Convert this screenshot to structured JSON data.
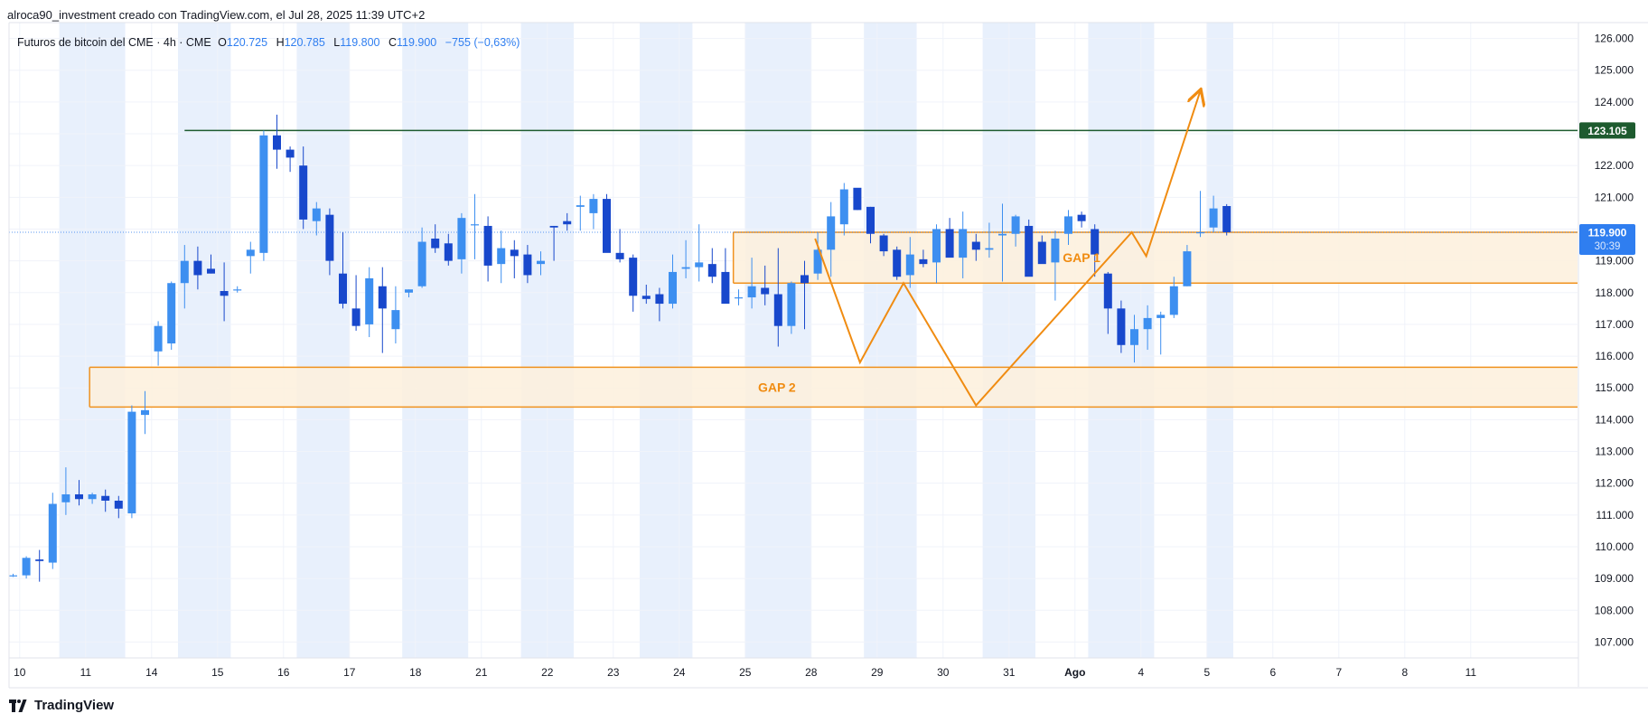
{
  "header": {
    "caption": "alroca90_investment creado con TradingView.com, el Jul 28, 2025 11:39 UTC+2"
  },
  "legend": {
    "symbol_text": "Futuros de bitcoin del CME · 4h · CME",
    "o_label": "O",
    "o_value": "120.725",
    "h_label": "H",
    "h_value": "120.785",
    "l_label": "L",
    "l_value": "119.800",
    "c_label": "C",
    "c_value": "119.900",
    "change": "−755 (−0,63%)"
  },
  "brand": {
    "name": "TradingView"
  },
  "colors": {
    "up": "#3d8ff0",
    "down": "#1848cc",
    "session": "#e8f0fc",
    "gap_fill": "#fdf0dc",
    "gap_border": "#f0921e",
    "arrow": "#f08c12",
    "resistance": "#1e5b2f",
    "grid": "#f0f3fa",
    "text": "#131722",
    "price_label": "#2f7ef0"
  },
  "price_tags": {
    "resistance": {
      "value": 123105,
      "text": "123.105"
    },
    "last": {
      "value": 119900,
      "text": "119.900",
      "countdown": "30:39"
    }
  },
  "chart_data": {
    "type": "candlestick",
    "interval": "4h",
    "ylim": [
      106500,
      126500
    ],
    "y_ticks": [
      {
        "v": 107000,
        "t": "107.000"
      },
      {
        "v": 108000,
        "t": "108.000"
      },
      {
        "v": 109000,
        "t": "109.000"
      },
      {
        "v": 110000,
        "t": "110.000"
      },
      {
        "v": 111000,
        "t": "111.000"
      },
      {
        "v": 112000,
        "t": "112.000"
      },
      {
        "v": 113000,
        "t": "113.000"
      },
      {
        "v": 114000,
        "t": "114.000"
      },
      {
        "v": 115000,
        "t": "115.000"
      },
      {
        "v": 116000,
        "t": "116.000"
      },
      {
        "v": 117000,
        "t": "117.000"
      },
      {
        "v": 118000,
        "t": "118.000"
      },
      {
        "v": 119000,
        "t": "119.000"
      },
      {
        "v": 120000,
        "t": "120.000"
      },
      {
        "v": 121000,
        "t": "121.000"
      },
      {
        "v": 122000,
        "t": "122.000"
      },
      {
        "v": 123000,
        "t": "123.000"
      },
      {
        "v": 124000,
        "t": "124.000"
      },
      {
        "v": 125000,
        "t": "125.000"
      },
      {
        "v": 126000,
        "t": "126.000"
      }
    ],
    "x_ticks": [
      {
        "i": 0.5,
        "t": "10",
        "b": false
      },
      {
        "i": 5.5,
        "t": "11",
        "b": false
      },
      {
        "i": 10.5,
        "t": "14",
        "b": false
      },
      {
        "i": 15.5,
        "t": "15",
        "b": false
      },
      {
        "i": 20.5,
        "t": "16",
        "b": false
      },
      {
        "i": 25.5,
        "t": "17",
        "b": false
      },
      {
        "i": 30.5,
        "t": "18",
        "b": false
      },
      {
        "i": 35.5,
        "t": "21",
        "b": false
      },
      {
        "i": 40.5,
        "t": "22",
        "b": false
      },
      {
        "i": 45.5,
        "t": "23",
        "b": false
      },
      {
        "i": 50.5,
        "t": "24",
        "b": false
      },
      {
        "i": 55.5,
        "t": "25",
        "b": false
      },
      {
        "i": 60.5,
        "t": "28",
        "b": false
      },
      {
        "i": 65.5,
        "t": "29",
        "b": false
      },
      {
        "i": 70.5,
        "t": "30",
        "b": false
      },
      {
        "i": 75.5,
        "t": "31",
        "b": false
      },
      {
        "i": 80.5,
        "t": "Ago",
        "b": true
      },
      {
        "i": 85.5,
        "t": "4",
        "b": false
      },
      {
        "i": 90.5,
        "t": "5",
        "b": false
      },
      {
        "i": 95.5,
        "t": "6",
        "b": false
      },
      {
        "i": 100.5,
        "t": "7",
        "b": false
      },
      {
        "i": 105.5,
        "t": "8",
        "b": false
      },
      {
        "i": 110.5,
        "t": "11",
        "b": false
      }
    ],
    "candles": [
      [
        109100,
        109150,
        109050,
        109100
      ],
      [
        109100,
        109700,
        109000,
        109650
      ],
      [
        109600,
        109900,
        108900,
        109550
      ],
      [
        109500,
        111700,
        109300,
        111350
      ],
      [
        111400,
        112500,
        111000,
        111650
      ],
      [
        111650,
        112100,
        111300,
        111500
      ],
      [
        111500,
        111700,
        111350,
        111650
      ],
      [
        111600,
        111800,
        111100,
        111450
      ],
      [
        111450,
        111600,
        110900,
        111200
      ],
      [
        111050,
        114450,
        110900,
        114250
      ],
      [
        114150,
        114900,
        113550,
        114300
      ],
      [
        116150,
        117100,
        115700,
        116950
      ],
      [
        116400,
        118350,
        116200,
        118300
      ],
      [
        118300,
        119500,
        117500,
        119000
      ],
      [
        119000,
        119450,
        118100,
        118550
      ],
      [
        118750,
        119200,
        118600,
        118600
      ],
      [
        118050,
        118950,
        117100,
        117900
      ],
      [
        118100,
        118200,
        118000,
        118100
      ],
      [
        119150,
        119600,
        118600,
        119350
      ],
      [
        119250,
        123100,
        119000,
        122950
      ],
      [
        122950,
        123600,
        121900,
        122500
      ],
      [
        122500,
        122600,
        121800,
        122250
      ],
      [
        122000,
        122600,
        120000,
        120300
      ],
      [
        120250,
        120850,
        119800,
        120650
      ],
      [
        120450,
        120650,
        118550,
        119000
      ],
      [
        118600,
        119900,
        117500,
        117650
      ],
      [
        117500,
        118550,
        116800,
        116950
      ],
      [
        117000,
        118800,
        116600,
        118450
      ],
      [
        118200,
        118800,
        116100,
        117500
      ],
      [
        116850,
        118200,
        116400,
        117450
      ],
      [
        118000,
        118100,
        117850,
        118100
      ],
      [
        118200,
        120050,
        118150,
        119600
      ],
      [
        119700,
        120150,
        119250,
        119400
      ],
      [
        119550,
        119850,
        118850,
        119000
      ],
      [
        119050,
        120500,
        118600,
        120350
      ],
      [
        120150,
        121100,
        119050,
        120150
      ],
      [
        120100,
        120400,
        118350,
        118850
      ],
      [
        118900,
        119950,
        118300,
        119400
      ],
      [
        119350,
        119650,
        118450,
        119150
      ],
      [
        119200,
        119500,
        118300,
        118550
      ],
      [
        118900,
        119300,
        118550,
        119000
      ],
      [
        120100,
        120100,
        119000,
        120050
      ],
      [
        120250,
        120500,
        119950,
        120150
      ],
      [
        120700,
        121050,
        119950,
        120750
      ],
      [
        120500,
        121100,
        120000,
        120950
      ],
      [
        120950,
        121100,
        119350,
        119250
      ],
      [
        119250,
        120000,
        118950,
        119050
      ],
      [
        119100,
        119200,
        117400,
        117900
      ],
      [
        117900,
        118250,
        117650,
        117800
      ],
      [
        117950,
        118150,
        117100,
        117650
      ],
      [
        117650,
        119200,
        117500,
        118650
      ],
      [
        118750,
        119650,
        118450,
        118800
      ],
      [
        118800,
        120150,
        118350,
        118950
      ],
      [
        118900,
        119400,
        118300,
        118500
      ],
      [
        118650,
        119400,
        117750,
        117650
      ],
      [
        117850,
        118100,
        117600,
        117850
      ],
      [
        117850,
        119100,
        117500,
        118200
      ],
      [
        118150,
        118850,
        117600,
        117950
      ],
      [
        117950,
        119400,
        116300,
        116950
      ],
      [
        116950,
        118350,
        116700,
        118300
      ],
      [
        118550,
        119000,
        116850,
        118300
      ],
      [
        118600,
        119900,
        118400,
        119350
      ],
      [
        119350,
        120850,
        118500,
        120400
      ],
      [
        120150,
        121450,
        119800,
        121250
      ],
      [
        121300,
        121250,
        120600,
        120600
      ],
      [
        120700,
        120700,
        119550,
        119850
      ],
      [
        119800,
        119850,
        119150,
        119300
      ],
      [
        119350,
        119450,
        118400,
        118500
      ],
      [
        118550,
        119750,
        118150,
        119200
      ],
      [
        119050,
        119350,
        118800,
        118900
      ],
      [
        118950,
        120150,
        118300,
        120000
      ],
      [
        120000,
        120350,
        119250,
        119100
      ],
      [
        119100,
        120550,
        118450,
        120000
      ],
      [
        119600,
        119850,
        119000,
        119350
      ],
      [
        119350,
        120200,
        119100,
        119400
      ],
      [
        119800,
        120800,
        118350,
        119850
      ],
      [
        119850,
        120450,
        119450,
        120400
      ],
      [
        120100,
        120300,
        118650,
        118500
      ],
      [
        119600,
        119800,
        118950,
        118900
      ],
      [
        118950,
        119950,
        117750,
        119700
      ],
      [
        119850,
        120600,
        119500,
        120400
      ],
      [
        120450,
        120550,
        120050,
        120250
      ],
      [
        120000,
        120150,
        118500,
        119200
      ],
      [
        118600,
        118650,
        116700,
        117500
      ],
      [
        117500,
        117750,
        116100,
        116350
      ],
      [
        116350,
        117300,
        115800,
        116850
      ],
      [
        116850,
        117600,
        116200,
        117200
      ],
      [
        117200,
        117400,
        116050,
        117300
      ],
      [
        117300,
        118500,
        117200,
        118200
      ],
      [
        118200,
        119500,
        118200,
        119300
      ],
      [
        119900,
        121200,
        119750,
        119900
      ],
      [
        120050,
        121050,
        119900,
        120650
      ],
      [
        120725,
        120785,
        119800,
        119900
      ]
    ],
    "gaps": [
      {
        "label": "GAP 1",
        "top": 119900,
        "bottom": 118300
      },
      {
        "label": "GAP 2",
        "top": 115650,
        "bottom": 114400
      }
    ],
    "resistance_line": {
      "value": 123105
    },
    "projection_path": [
      {
        "x": 60.8,
        "y": 119700
      },
      {
        "x": 64.2,
        "y": 115800
      },
      {
        "x": 67.5,
        "y": 118300
      },
      {
        "x": 73.0,
        "y": 114450
      },
      {
        "x": 84.8,
        "y": 119900
      },
      {
        "x": 85.9,
        "y": 119150
      },
      {
        "x": 90.0,
        "y": 124350
      }
    ]
  }
}
